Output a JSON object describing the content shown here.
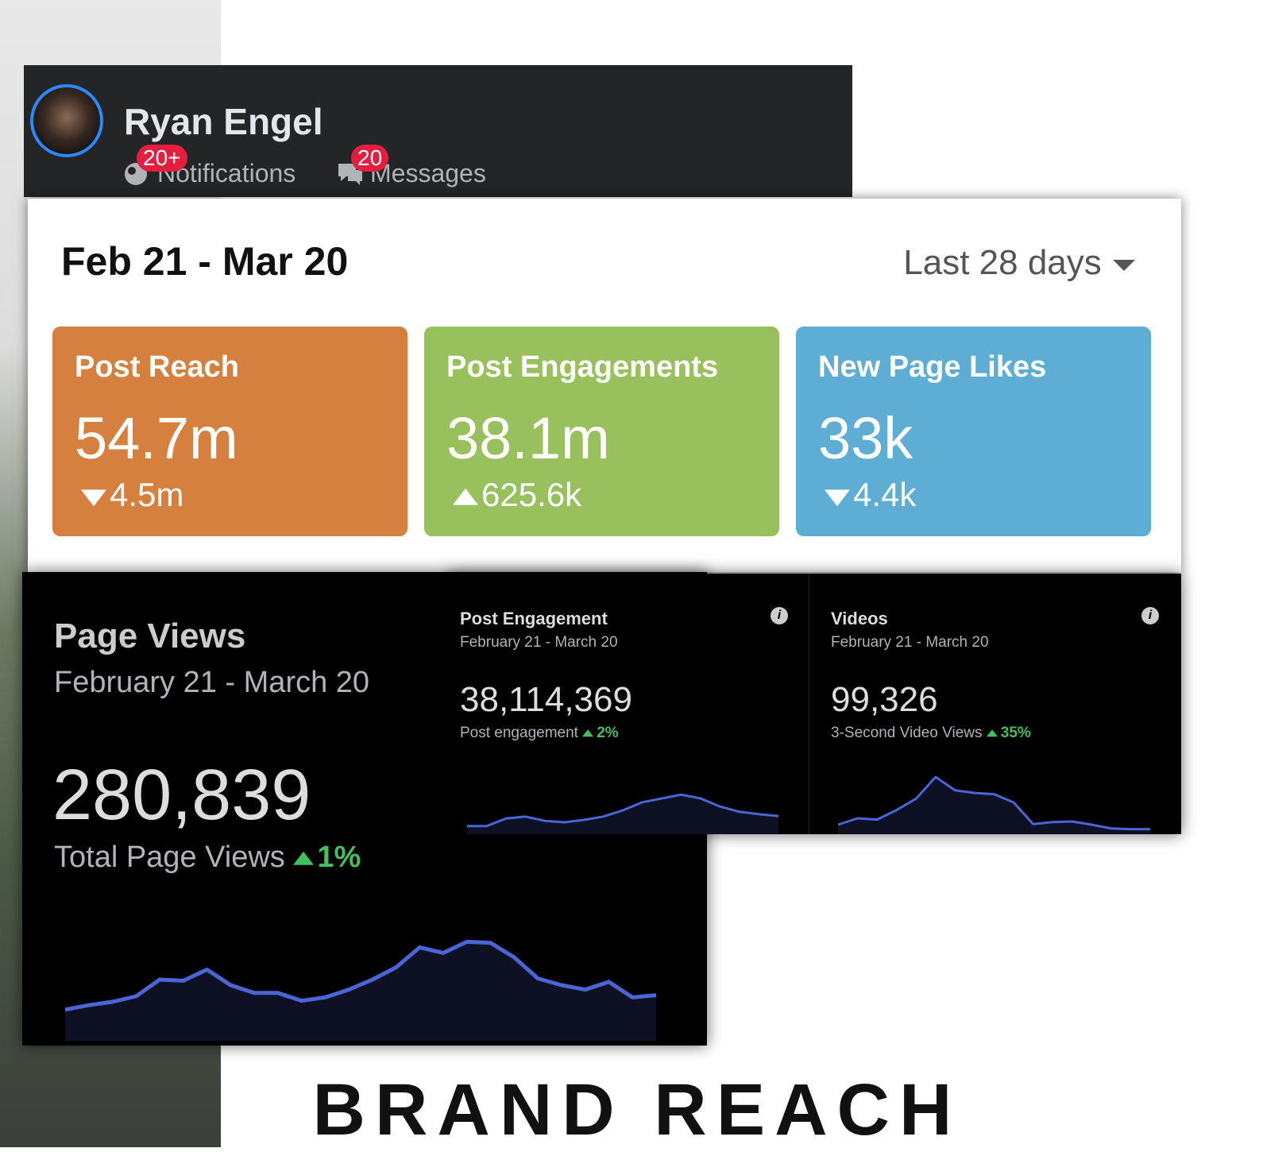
{
  "profile": {
    "name": "Ryan Engel",
    "notifications": {
      "badge": "20+",
      "label": "Notifications"
    },
    "messages": {
      "badge": "20",
      "label": "Messages"
    }
  },
  "summary": {
    "date_range": "Feb 21 - Mar 20",
    "period": "Last 28 days",
    "cards": [
      {
        "title": "Post Reach",
        "value": "54.7m",
        "change": "4.5m",
        "direction": "down",
        "color": "#d5803f"
      },
      {
        "title": "Post Engagements",
        "value": "38.1m",
        "change": "625.6k",
        "direction": "up",
        "color": "#98c05c"
      },
      {
        "title": "New Page Likes",
        "value": "33k",
        "change": "4.4k",
        "direction": "down",
        "color": "#5eadd5"
      }
    ]
  },
  "page_views": {
    "title": "Page Views",
    "date_range": "February 21 - March 20",
    "value": "280,839",
    "label": "Total Page Views",
    "change": "1%",
    "direction": "up",
    "trend": {
      "values": [
        28,
        32,
        35,
        40,
        55,
        54,
        64,
        50,
        43,
        43,
        36,
        39,
        46,
        55,
        66,
        84,
        79,
        89,
        88,
        75,
        56,
        50,
        46,
        53,
        39,
        41
      ],
      "ylim": [
        0,
        100
      ],
      "color": "#4a66d6"
    }
  },
  "post_engagement": {
    "title": "Post Engagement",
    "date_range": "February 21 - March 20",
    "value": "38,114,369",
    "label": "Post engagement",
    "change": "2%",
    "direction": "up",
    "trend": {
      "values": [
        17,
        17,
        33,
        37,
        28,
        25,
        30,
        37,
        50,
        67,
        75,
        83,
        75,
        58,
        47,
        42,
        38
      ],
      "ylim": [
        0,
        100
      ],
      "color": "#4a66d6"
    }
  },
  "videos": {
    "title": "Videos",
    "date_range": "February 21 - March 20",
    "value": "99,326",
    "label": "3-Second Video Views",
    "change": "35%",
    "direction": "up",
    "trend": {
      "values": [
        15,
        25,
        23,
        38,
        56,
        90,
        69,
        65,
        63,
        50,
        16,
        19,
        20,
        15,
        9,
        8,
        8
      ],
      "ylim": [
        0,
        100
      ],
      "color": "#4a66d6"
    }
  },
  "footer": {
    "title": "BRAND REACH"
  }
}
